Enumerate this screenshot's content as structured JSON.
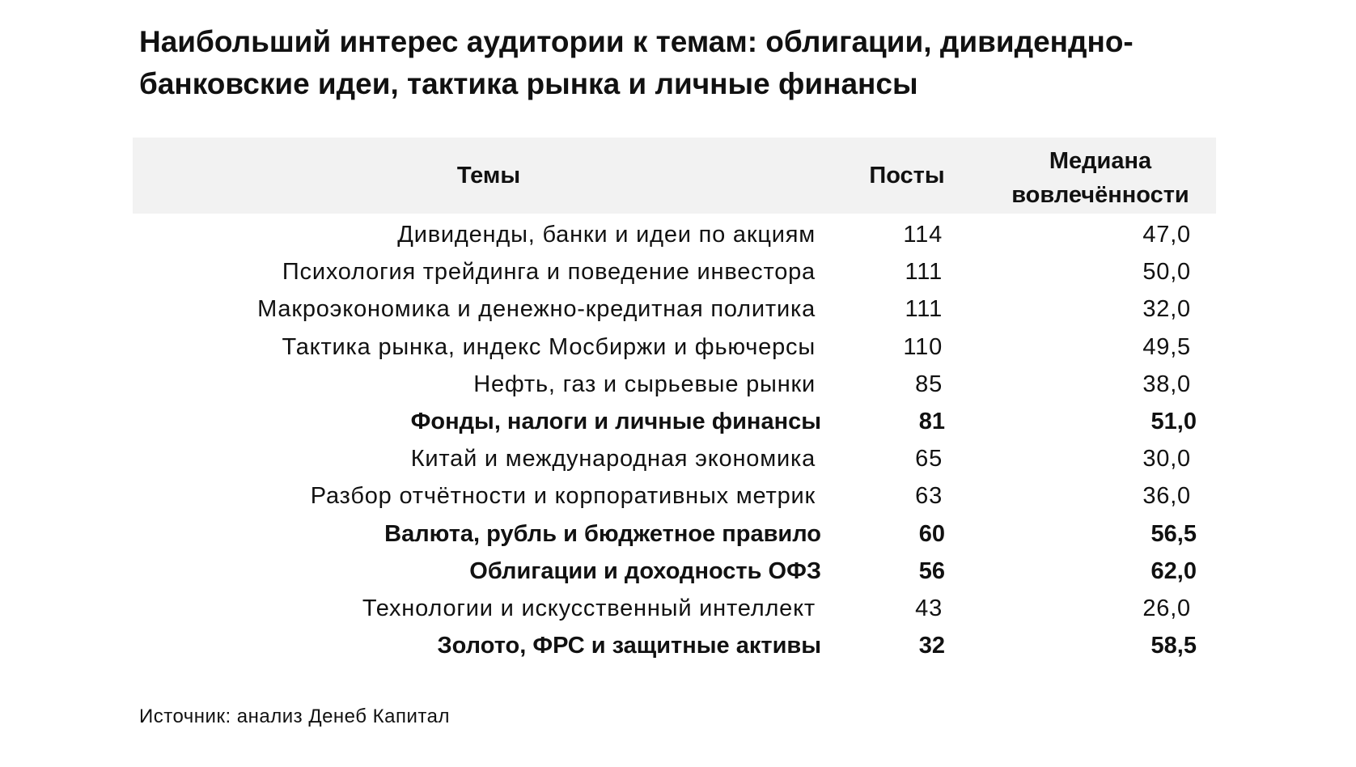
{
  "title": "Наибольший интерес аудитории к темам: облигации, дивидендно-банковские идеи, тактика рынка и личные финансы",
  "table": {
    "header": [
      "Темы",
      "Посты",
      "Медиана вовлечённости"
    ],
    "header_background": "#f2f2f2",
    "rows": [
      {
        "topic": "Дивиденды, банки и идеи по акциям",
        "posts": 114,
        "median": "47,0",
        "bold": false
      },
      {
        "topic": "Психология трейдинга и поведение инвестора",
        "posts": 111,
        "median": "50,0",
        "bold": false
      },
      {
        "topic": "Макроэкономика и денежно-кредитная политика",
        "posts": 111,
        "median": "32,0",
        "bold": false
      },
      {
        "topic": "Тактика рынка, индекс Мосбиржи и фьючерсы",
        "posts": 110,
        "median": "49,5",
        "bold": false
      },
      {
        "topic": "Нефть, газ и сырьевые рынки",
        "posts": 85,
        "median": "38,0",
        "bold": false
      },
      {
        "topic": "Фонды, налоги и личные финансы",
        "posts": 81,
        "median": "51,0",
        "bold": true
      },
      {
        "topic": "Китай и международная экономика",
        "posts": 65,
        "median": "30,0",
        "bold": false
      },
      {
        "topic": "Разбор отчётности и корпоративных метрик",
        "posts": 63,
        "median": "36,0",
        "bold": false
      },
      {
        "topic": "Валюта, рубль и бюджетное правило",
        "posts": 60,
        "median": "56,5",
        "bold": true
      },
      {
        "topic": "Облигации и доходность ОФЗ",
        "posts": 56,
        "median": "62,0",
        "bold": true
      },
      {
        "topic": "Технологии и искусственный интеллект",
        "posts": 43,
        "median": "26,0",
        "bold": false
      },
      {
        "topic": "Золото, ФРС и защитные активы",
        "posts": 32,
        "median": "58,5",
        "bold": true
      }
    ]
  },
  "source": "Источник: анализ Денеб Капитал"
}
